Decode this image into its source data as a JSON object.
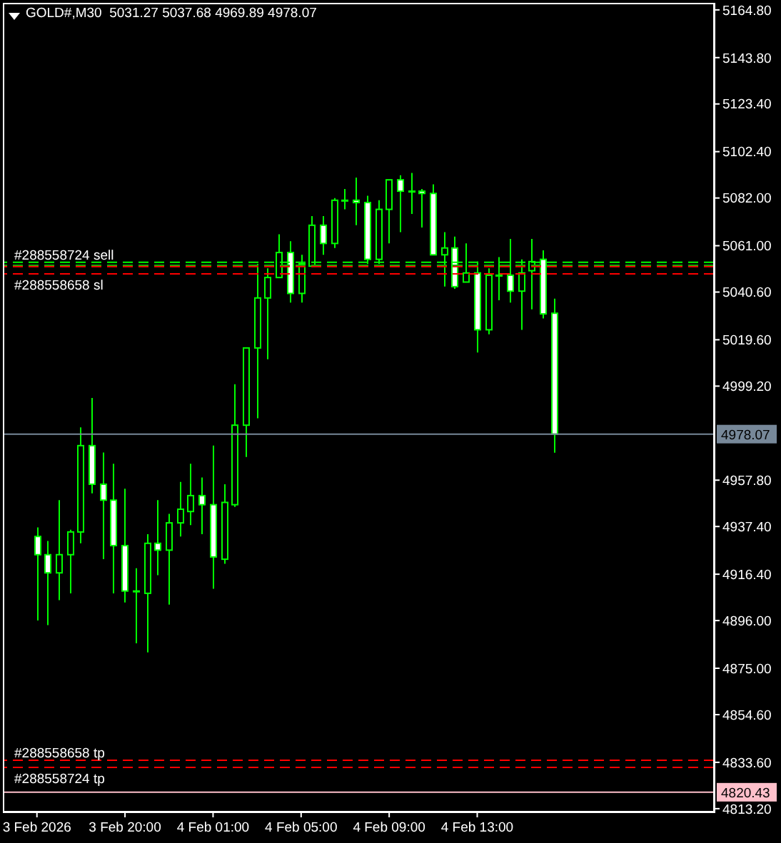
{
  "chart_data": {
    "type": "candlestick",
    "title": "GOLD#,M30  5031.27 5037.68 4969.89 4978.07",
    "color": "#00ff00",
    "categories": [
      "3 Feb 2026",
      null,
      null,
      null,
      null,
      null,
      null,
      null,
      "3 Feb 20:00",
      null,
      null,
      null,
      null,
      null,
      null,
      null,
      "4 Feb 01:00",
      null,
      null,
      null,
      null,
      null,
      null,
      null,
      "4 Feb 05:00",
      null,
      null,
      null,
      null,
      null,
      null,
      null,
      "4 Feb 09:00",
      null,
      null,
      null,
      null,
      null,
      null,
      null,
      "4 Feb 13:00",
      null,
      null,
      null,
      null,
      null,
      null,
      null,
      null,
      null,
      null,
      null,
      null,
      null,
      null,
      null,
      null,
      null,
      null,
      null,
      null,
      null
    ],
    "ohlc": [
      [
        4933,
        4937,
        4896,
        4925
      ],
      [
        4925,
        4931,
        4894,
        4917
      ],
      [
        4917,
        4949,
        4905,
        4925
      ],
      [
        4925,
        4936,
        4908,
        4935
      ],
      [
        4935,
        4981,
        4930,
        4973
      ],
      [
        4973,
        4994,
        4952,
        4956
      ],
      [
        4956,
        4970,
        4923,
        4949
      ],
      [
        4949,
        4965,
        4908,
        4929
      ],
      [
        4929,
        4954,
        4904,
        4909
      ],
      [
        4909,
        4919,
        4886,
        4909
      ],
      [
        4908,
        4934,
        4882,
        4930
      ],
      [
        4930,
        4949,
        4916,
        4927
      ],
      [
        4927,
        4943,
        4903,
        4939
      ],
      [
        4939,
        4957,
        4933,
        4945
      ],
      [
        4944,
        4965,
        4938,
        4951
      ],
      [
        4951,
        4959,
        4934,
        4947
      ],
      [
        4947,
        4973,
        4910,
        4924
      ],
      [
        4923,
        4956,
        4921,
        4948
      ],
      [
        4947,
        5000,
        4946,
        4982
      ],
      [
        4982,
        5016,
        4968,
        5016
      ],
      [
        5016,
        5053,
        4985,
        5038
      ],
      [
        5038,
        5051,
        5011,
        5047
      ],
      [
        5047,
        5066,
        5047,
        5058
      ],
      [
        5058,
        5063,
        5036,
        5040
      ],
      [
        5040,
        5057,
        5036,
        5053
      ],
      [
        5052,
        5074,
        5052,
        5070
      ],
      [
        5070,
        5074,
        5057,
        5062
      ],
      [
        5062,
        5082,
        5060,
        5081
      ],
      [
        5081,
        5086,
        5077,
        5081
      ],
      [
        5081,
        5091,
        5070,
        5080
      ],
      [
        5080,
        5083,
        5053,
        5055
      ],
      [
        5055,
        5081,
        5053,
        5077
      ],
      [
        5077,
        5090,
        5062,
        5090
      ],
      [
        5090,
        5092,
        5067,
        5085
      ],
      [
        5085,
        5093,
        5075,
        5085
      ],
      [
        5085,
        5086,
        5069,
        5084
      ],
      [
        5084,
        5088,
        5057,
        5057
      ],
      [
        5057,
        5067,
        5043,
        5060
      ],
      [
        5060,
        5065,
        5042,
        5043
      ],
      [
        5045,
        5062,
        5045,
        5049
      ],
      [
        5049,
        5054,
        5014,
        5024
      ],
      [
        5024,
        5051,
        5022,
        5048
      ],
      [
        5048,
        5056,
        5037,
        5048
      ],
      [
        5048,
        5064,
        5036,
        5041
      ],
      [
        5041,
        5055,
        5024,
        5049
      ],
      [
        5050,
        5064,
        5033,
        5054
      ],
      [
        5055,
        5059,
        5029,
        5031
      ],
      [
        5031.27,
        5037.68,
        4969.89,
        4978.07
      ],
      null,
      null,
      null,
      null,
      null,
      null,
      null,
      null,
      null,
      null,
      null,
      null,
      null,
      null
    ],
    "colors": [
      "#ffffff",
      "#ffffff",
      "#000000",
      "#000000",
      "#000000",
      "#ffffff",
      "#ffffff",
      "#ffffff",
      "#ffffff",
      "#000000",
      "#000000",
      "#ffffff",
      "#000000",
      "#000000",
      "#000000",
      "#ffffff",
      "#ffffff",
      "#000000",
      "#000000",
      "#000000",
      "#000000",
      "#000000",
      "#000000",
      "#ffffff",
      "#000000",
      "#000000",
      "#ffffff",
      "#000000",
      "#000000",
      "#ffffff",
      "#ffffff",
      "#000000",
      "#000000",
      "#ffffff",
      "#000000",
      "#ffffff",
      "#ffffff",
      "#000000",
      "#ffffff",
      "#000000",
      "#ffffff",
      "#000000",
      "#000000",
      "#ffffff",
      "#000000",
      "#000000",
      "#ffffff",
      "#ffffff",
      null,
      null,
      null,
      null,
      null,
      null,
      null,
      null,
      null,
      null,
      null,
      null,
      null,
      null
    ],
    "ylim": [
      4811.9,
      5167.9
    ],
    "yticks": [
      {
        "value": 5164.8,
        "label": "5164.80"
      },
      {
        "value": 5143.8,
        "label": "5143.80"
      },
      {
        "value": 5123.4,
        "label": "5123.40"
      },
      {
        "value": 5102.4,
        "label": "5102.40"
      },
      {
        "value": 5082,
        "label": "5082.00"
      },
      {
        "value": 5061,
        "label": "5061.00"
      },
      {
        "value": 5040.6,
        "label": "5040.60"
      },
      {
        "value": 5019.6,
        "label": "5019.60"
      },
      {
        "value": 4999.2,
        "label": "4999.20"
      },
      {
        "value": 4957.8,
        "label": "4957.80"
      },
      {
        "value": 4937.4,
        "label": "4937.40"
      },
      {
        "value": 4916.4,
        "label": "4916.40"
      },
      {
        "value": 4896,
        "label": "4896.00"
      },
      {
        "value": 4875,
        "label": "4875.00"
      },
      {
        "value": 4854.6,
        "label": "4854.60"
      },
      {
        "value": 4833.6,
        "label": "4833.60"
      },
      {
        "value": 4813.2,
        "label": "4813.20"
      }
    ],
    "ref_lines": [
      {
        "axis": "y",
        "value": 5053.7,
        "label": "#288558724 sell",
        "color": "#00ff00",
        "line_style": "dashed"
      },
      {
        "axis": "y",
        "value": 5052.4,
        "color": "#00c000",
        "line_style": "dashed"
      },
      {
        "axis": "y",
        "value": 5051.8,
        "color": "#ff0000",
        "line_style": "dashed"
      },
      {
        "axis": "y",
        "value": 5048.6,
        "label": "#288558658 sl",
        "color": "#ff0000",
        "line_style": "dashed"
      },
      {
        "axis": "y",
        "value": 4834.5,
        "label": "#288558658 tp",
        "color": "#ff0000",
        "line_style": "dashed"
      },
      {
        "axis": "y",
        "value": 4831.4,
        "label": "#288558724 tp",
        "color": "#ff0000",
        "line_style": "dashed"
      },
      {
        "axis": "y",
        "value": 4978.07,
        "label": "4978.07",
        "color": "#778899",
        "line_style": "solid"
      },
      {
        "axis": "y",
        "value": 4820.43,
        "label": "4820.43",
        "color": "#ffc0cb",
        "line_style": "solid"
      }
    ]
  }
}
